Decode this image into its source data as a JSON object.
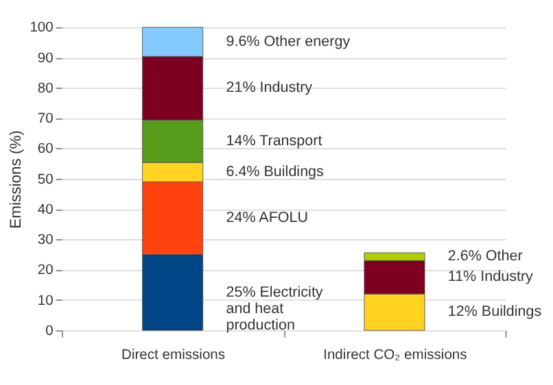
{
  "chart_data": {
    "type": "bar",
    "stacked": true,
    "ylabel": "Emissions (%)",
    "categories": [
      "Direct emissions",
      "Indirect CO₂ emissions"
    ],
    "ylim": [
      0,
      100
    ],
    "yticks": [
      0,
      10,
      20,
      30,
      40,
      50,
      60,
      70,
      80,
      90,
      100
    ],
    "grid": "y",
    "series": [
      {
        "name": "Electricity\nand heat\nproduction",
        "color": "#004586",
        "values": [
          25,
          null
        ],
        "value_labels": [
          "25%",
          null
        ]
      },
      {
        "name": "AFOLU",
        "color": "#ff420e",
        "values": [
          24,
          null
        ],
        "value_labels": [
          "24%",
          null
        ]
      },
      {
        "name": "Buildings",
        "color": "#ffd320",
        "values": [
          6.4,
          12
        ],
        "value_labels": [
          "6.4%",
          "12%"
        ]
      },
      {
        "name": "Transport",
        "color": "#579d1c",
        "values": [
          14,
          null
        ],
        "value_labels": [
          "14%",
          null
        ]
      },
      {
        "name": "Industry",
        "color": "#7e0021",
        "values": [
          21,
          11
        ],
        "value_labels": [
          "21%",
          "11%"
        ]
      },
      {
        "name": "Other energy",
        "color": "#83caff",
        "values": [
          9.6,
          null
        ],
        "value_labels": [
          "9.6%",
          null
        ]
      },
      {
        "name": "Other",
        "color": "#aecf00",
        "values": [
          null,
          2.6
        ],
        "value_labels": [
          null,
          "2.6%"
        ]
      }
    ]
  }
}
